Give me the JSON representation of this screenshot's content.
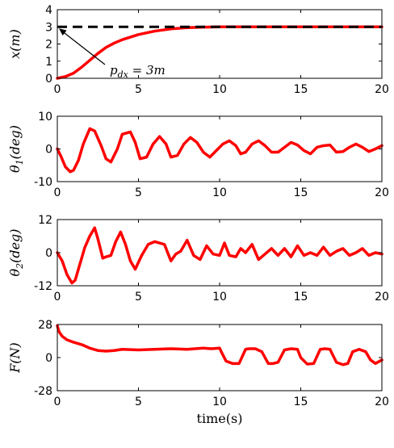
{
  "chart_data": [
    {
      "type": "line",
      "ylabel": "x(m)",
      "xlim": [
        0,
        20
      ],
      "ylim": [
        0,
        4
      ],
      "xticks": [
        "0",
        "5",
        "10",
        "15",
        "20"
      ],
      "yticks": [
        "0",
        "1",
        "2",
        "3",
        "4"
      ],
      "annotation": "p_dx = 3m",
      "annotation_target": {
        "x": 0,
        "y": 3
      },
      "series": [
        {
          "color": "#ff0000",
          "style": "solid",
          "x": [
            0,
            0.5,
            1,
            1.5,
            2,
            2.5,
            3,
            3.5,
            4,
            5,
            6,
            7,
            8,
            9,
            10,
            12,
            14,
            16,
            18,
            20
          ],
          "y": [
            0,
            0.1,
            0.3,
            0.65,
            1.05,
            1.45,
            1.8,
            2.05,
            2.25,
            2.55,
            2.75,
            2.88,
            2.95,
            2.98,
            3.0,
            3.0,
            3.0,
            3.0,
            3.0,
            3.0
          ]
        },
        {
          "color": "#000000",
          "style": "dashed",
          "x": [
            0,
            20
          ],
          "y": [
            3,
            3
          ]
        }
      ]
    },
    {
      "type": "line",
      "ylabel": "θ1(deg)",
      "xlim": [
        0,
        20
      ],
      "ylim": [
        -10,
        10
      ],
      "xticks": [
        "0",
        "5",
        "10",
        "15",
        "20"
      ],
      "yticks": [
        "-10",
        "0",
        "10"
      ],
      "series": [
        {
          "color": "#ff0000",
          "style": "solid",
          "x": [
            0,
            0.2,
            0.5,
            0.8,
            1.0,
            1.3,
            1.6,
            2.0,
            2.3,
            2.7,
            3.0,
            3.3,
            3.7,
            4.0,
            4.5,
            4.8,
            5.1,
            5.5,
            5.9,
            6.3,
            6.7,
            7.0,
            7.4,
            7.8,
            8.2,
            8.6,
            9.0,
            9.4,
            9.8,
            10.2,
            10.6,
            11.0,
            11.3,
            11.6,
            12.0,
            12.4,
            12.8,
            13.2,
            13.6,
            14.0,
            14.4,
            14.8,
            15.2,
            15.6,
            16.0,
            16.4,
            16.8,
            17.2,
            17.6,
            18.0,
            18.4,
            18.8,
            19.2,
            19.6,
            20.0
          ],
          "y": [
            0,
            -2,
            -5.5,
            -7,
            -6.5,
            -3.5,
            1.5,
            6.2,
            5.5,
            1,
            -3,
            -4,
            0,
            4.5,
            5.2,
            2,
            -3,
            -2.5,
            1.5,
            3.8,
            1.5,
            -2.5,
            -2,
            1.5,
            3.5,
            2,
            -1,
            -2.5,
            -0.5,
            1.5,
            2.5,
            1,
            -1.5,
            -1,
            1.5,
            2.5,
            1,
            -1,
            -1,
            0.5,
            2,
            1.2,
            -0.5,
            -1.5,
            0.5,
            1,
            1.2,
            -1,
            -0.8,
            0.5,
            1.5,
            0.5,
            -0.8,
            0,
            1
          ]
        }
      ]
    },
    {
      "type": "line",
      "ylabel": "θ2(deg)",
      "xlim": [
        0,
        20
      ],
      "ylim": [
        -12,
        12
      ],
      "xticks": [
        "0",
        "5",
        "10",
        "15",
        "20"
      ],
      "yticks": [
        "-12",
        "0",
        "12"
      ],
      "series": [
        {
          "color": "#ff0000",
          "style": "solid",
          "x": [
            0,
            0.3,
            0.6,
            0.9,
            1.1,
            1.4,
            1.7,
            2.0,
            2.3,
            2.5,
            2.8,
            3.0,
            3.3,
            3.6,
            3.9,
            4.2,
            4.5,
            4.8,
            5.2,
            5.6,
            6.0,
            6.3,
            6.6,
            7.0,
            7.3,
            7.6,
            8.0,
            8.4,
            8.8,
            9.2,
            9.6,
            10.0,
            10.3,
            10.6,
            11.0,
            11.3,
            11.6,
            12.0,
            12.4,
            12.8,
            13.2,
            13.6,
            14.0,
            14.4,
            14.8,
            15.2,
            15.6,
            16.0,
            16.4,
            16.8,
            17.2,
            17.6,
            18.0,
            18.4,
            18.8,
            19.2,
            19.6,
            20.0
          ],
          "y": [
            0,
            -3,
            -8,
            -11,
            -10,
            -4,
            2,
            6,
            9,
            5,
            -2,
            -1.5,
            -1,
            4,
            7.5,
            3,
            -3,
            -6,
            -1,
            3,
            4,
            3.5,
            3,
            -3,
            -0.5,
            0.5,
            4.5,
            -1,
            -2.5,
            2.5,
            -0.5,
            -1,
            3.5,
            -1,
            -1.5,
            1.5,
            0,
            3,
            -2.5,
            -0.5,
            1.5,
            -1,
            1.5,
            -1.5,
            2.5,
            -1,
            0,
            -1,
            2,
            -1,
            0.5,
            1.5,
            -1,
            0,
            1.5,
            -1,
            0,
            -0.5
          ]
        }
      ]
    },
    {
      "type": "line",
      "ylabel": "F(N)",
      "xlabel": "time(s)",
      "xlim": [
        0,
        20
      ],
      "ylim": [
        -28,
        28
      ],
      "xticks": [
        "0",
        "5",
        "10",
        "15",
        "20"
      ],
      "yticks": [
        "-28",
        "0",
        "28"
      ],
      "series": [
        {
          "color": "#ff0000",
          "style": "solid",
          "x": [
            0,
            0.1,
            0.3,
            0.6,
            1.0,
            1.5,
            2.0,
            2.5,
            3.0,
            3.5,
            4.0,
            5.0,
            6.0,
            7.0,
            8.0,
            9.0,
            9.5,
            10.0,
            10.1,
            10.4,
            10.8,
            11.2,
            11.6,
            11.8,
            12.2,
            12.6,
            13.0,
            13.3,
            13.6,
            14.0,
            14.4,
            14.8,
            15.0,
            15.4,
            15.8,
            16.2,
            16.5,
            16.8,
            17.2,
            17.6,
            17.9,
            18.2,
            18.6,
            19.0,
            19.3,
            19.6,
            20.0
          ],
          "y": [
            27,
            22,
            18,
            15,
            13,
            11,
            8,
            6,
            5.5,
            6,
            7,
            6.5,
            7,
            7.5,
            7,
            8,
            7.5,
            8,
            5,
            -3,
            -5,
            -5,
            7,
            7.5,
            7.5,
            5,
            -5,
            -5,
            -4,
            6.5,
            7.5,
            7,
            0,
            -5.5,
            -5,
            7,
            7.5,
            7,
            -4,
            -6,
            -5,
            5,
            7,
            5,
            -2,
            -5,
            -2
          ]
        }
      ]
    }
  ]
}
